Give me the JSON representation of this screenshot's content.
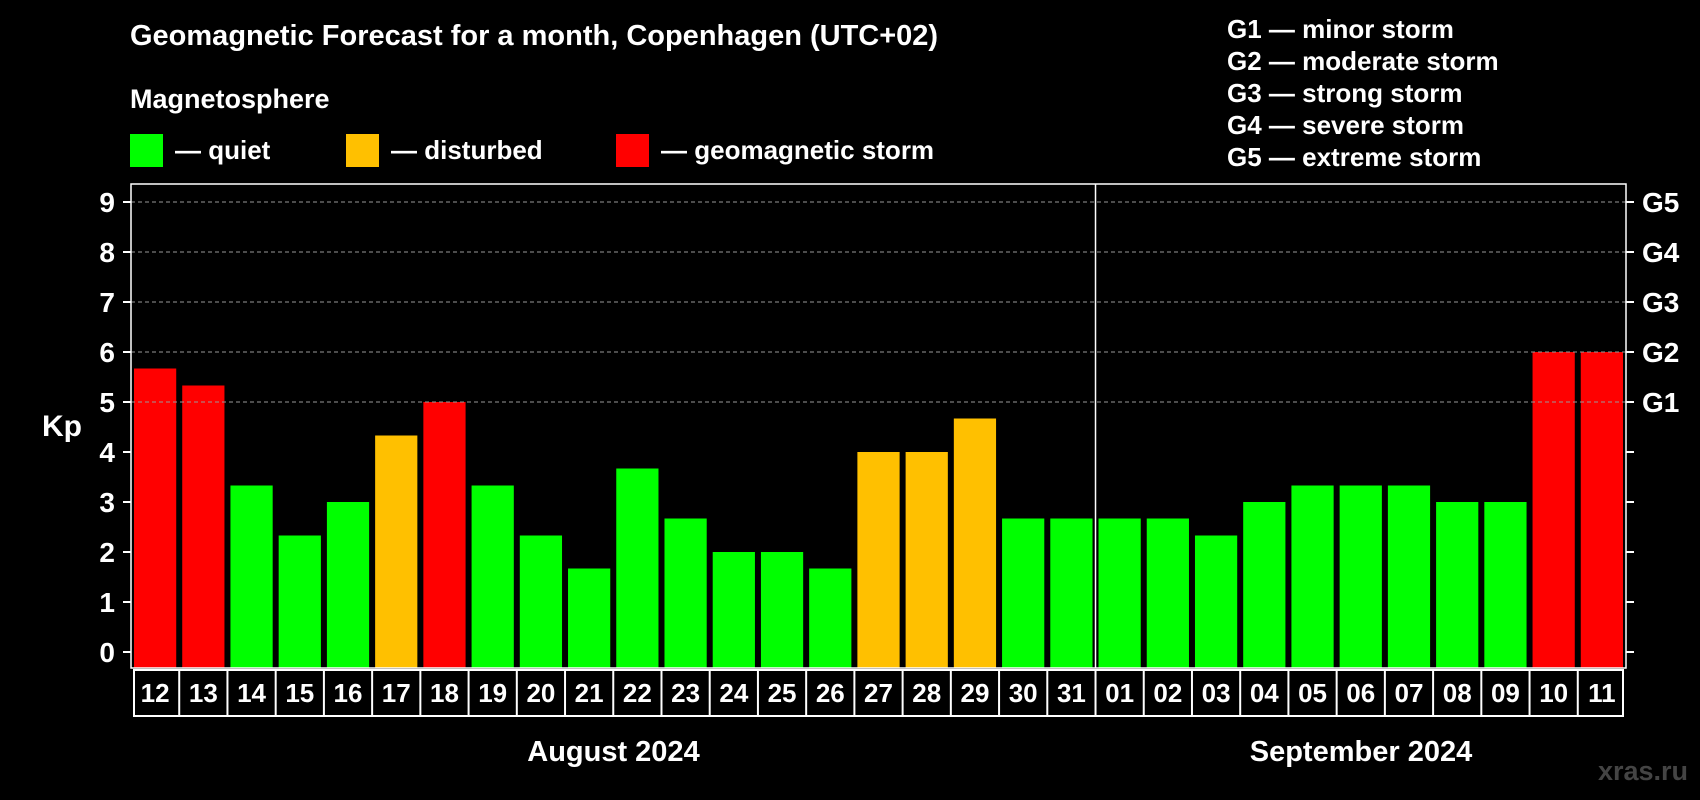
{
  "chart_data": {
    "type": "bar",
    "title": "Geomagnetic Forecast for a month, Copenhagen (UTC+02)",
    "ylabel": "Kp",
    "ylim": [
      0,
      9
    ],
    "yticks": [
      "0",
      "1",
      "2",
      "3",
      "4",
      "5",
      "6",
      "7",
      "8",
      "9"
    ],
    "grid_lines_at": [
      5,
      6,
      7,
      8,
      9
    ],
    "right_axis_labels": [
      {
        "kp": 5,
        "label": "G1"
      },
      {
        "kp": 6,
        "label": "G2"
      },
      {
        "kp": 7,
        "label": "G3"
      },
      {
        "kp": 8,
        "label": "G4"
      },
      {
        "kp": 9,
        "label": "G5"
      }
    ],
    "categories": [
      "12",
      "13",
      "14",
      "15",
      "16",
      "17",
      "18",
      "19",
      "20",
      "21",
      "22",
      "23",
      "24",
      "25",
      "26",
      "27",
      "28",
      "29",
      "30",
      "31",
      "01",
      "02",
      "03",
      "04",
      "05",
      "06",
      "07",
      "08",
      "09",
      "10",
      "11"
    ],
    "values": [
      5.67,
      5.33,
      3.33,
      2.33,
      3.0,
      4.33,
      5.0,
      3.33,
      2.33,
      1.67,
      3.67,
      2.67,
      2.0,
      2.0,
      1.67,
      4.0,
      4.0,
      4.67,
      2.67,
      2.67,
      2.67,
      2.67,
      2.33,
      3.0,
      3.33,
      3.33,
      3.33,
      3.0,
      3.0,
      6.0,
      6.0
    ],
    "states": [
      "storm",
      "storm",
      "quiet",
      "quiet",
      "quiet",
      "disturbed",
      "storm",
      "quiet",
      "quiet",
      "quiet",
      "quiet",
      "quiet",
      "quiet",
      "quiet",
      "quiet",
      "disturbed",
      "disturbed",
      "disturbed",
      "quiet",
      "quiet",
      "quiet",
      "quiet",
      "quiet",
      "quiet",
      "quiet",
      "quiet",
      "quiet",
      "quiet",
      "quiet",
      "storm",
      "storm"
    ],
    "month_split_index": 20,
    "months": [
      "August 2024",
      "September 2024"
    ]
  },
  "legend": {
    "heading": "Magnetosphere",
    "items": [
      {
        "key": "quiet",
        "label": "— quiet",
        "color": "#00ff00"
      },
      {
        "key": "disturbed",
        "label": "— disturbed",
        "color": "#ffc000"
      },
      {
        "key": "storm",
        "label": "— geomagnetic storm",
        "color": "#ff0000"
      }
    ]
  },
  "g_scale": [
    "G1 — minor storm",
    "G2 — moderate storm",
    "G3 — strong storm",
    "G4 — severe storm",
    "G5 — extreme storm"
  ],
  "watermark": "xras.ru"
}
